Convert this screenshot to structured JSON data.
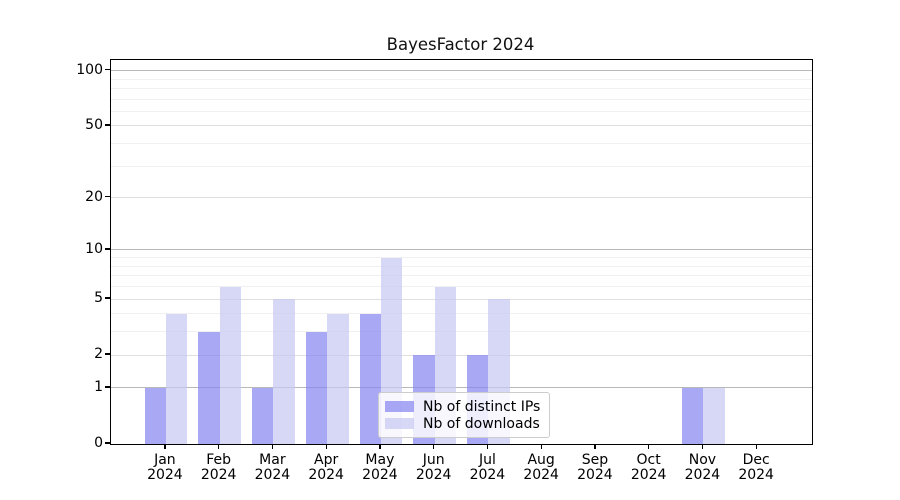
{
  "title": "BayesFactor 2024",
  "chart_data": {
    "type": "bar",
    "title": "BayesFactor 2024",
    "categories": [
      "Jan 2024",
      "Feb 2024",
      "Mar 2024",
      "Apr 2024",
      "May 2024",
      "Jun 2024",
      "Jul 2024",
      "Aug 2024",
      "Sep 2024",
      "Oct 2024",
      "Nov 2024",
      "Dec 2024"
    ],
    "series": [
      {
        "name": "Nb of distinct IPs",
        "color": "#a8a8f4",
        "fill": "rgba(134,134,240,0.72)",
        "values": [
          1,
          3,
          1,
          3,
          4,
          2,
          2,
          0,
          0,
          0,
          1,
          0
        ]
      },
      {
        "name": "Nb of downloads",
        "color": "#d7d7f6",
        "fill": "rgba(199,199,243,0.72)",
        "values": [
          4,
          6,
          5,
          4,
          9,
          6,
          5,
          0,
          0,
          0,
          1,
          0
        ]
      }
    ],
    "xlabel": "",
    "ylabel": "",
    "y_scale": "log10(1+value)",
    "ylim": [
      0,
      113
    ],
    "yticks": [
      0,
      1,
      2,
      5,
      10,
      20,
      50,
      100
    ],
    "gridlines_major": [
      1,
      10,
      100
    ],
    "gridlines_mid": [
      2,
      5,
      20,
      50
    ],
    "gridlines_minor": [
      3,
      4,
      6,
      7,
      8,
      9,
      30,
      40,
      60,
      70,
      80,
      90
    ],
    "legend_position": "lower center",
    "grid": "horizontal"
  },
  "colors": {
    "background": "#ffffff",
    "frame": "#000000",
    "grid_major": "#b8b8b8",
    "grid_mid": "#dfdfdf",
    "grid_minor": "#f0f0f0",
    "text": "#000000"
  }
}
